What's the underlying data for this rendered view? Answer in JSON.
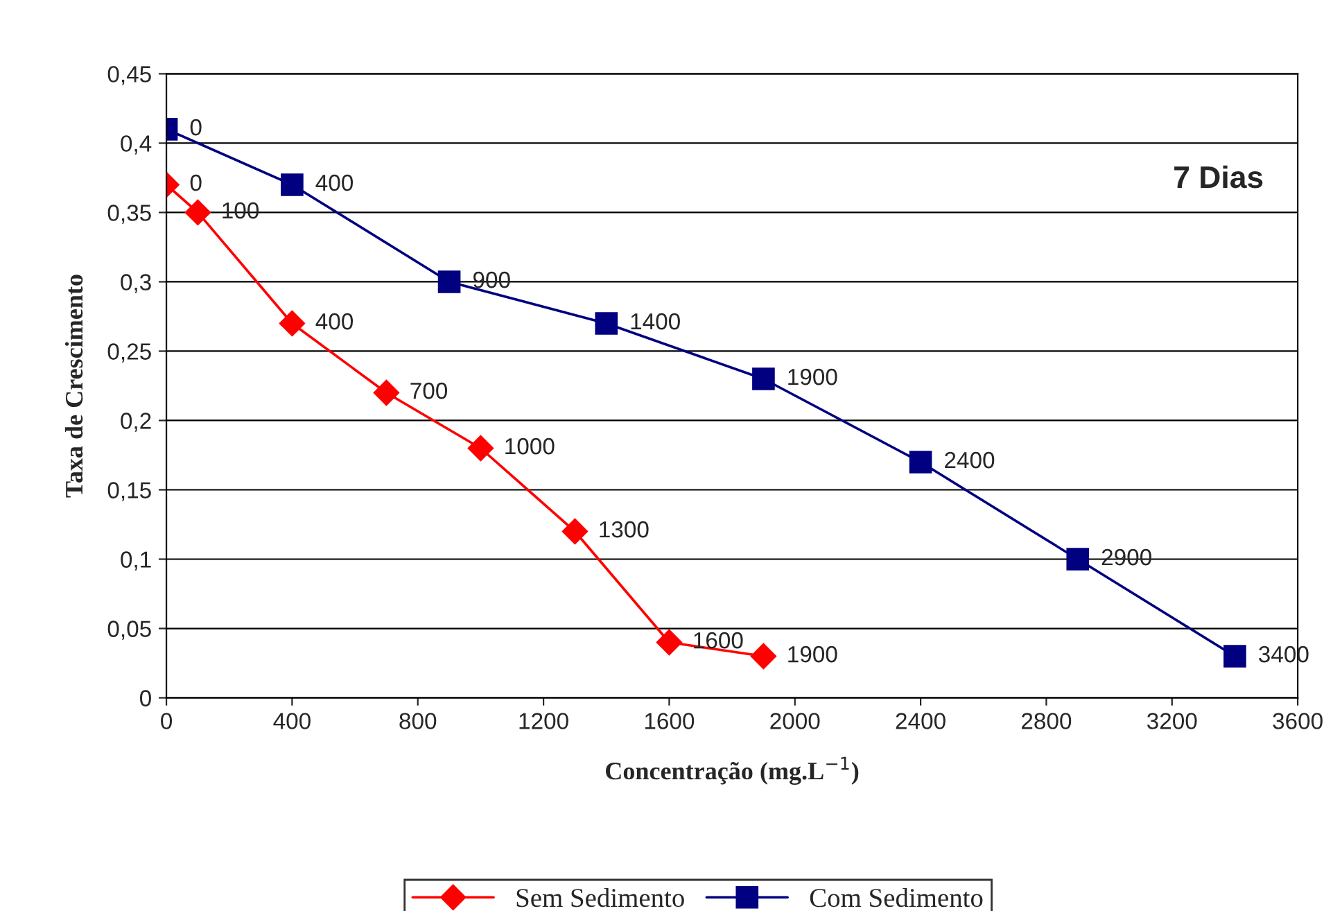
{
  "chart_data": {
    "type": "line",
    "xlabel": "Concentração (mg.L$^{−1}$)",
    "ylabel": "Taxa de Crescimento",
    "series": [
      {
        "name": "Sem Sedimento",
        "color": "#ff0000",
        "marker": "diamond",
        "x": [
          0,
          100,
          400,
          700,
          1000,
          1300,
          1600,
          1900
        ],
        "values": [
          0.37,
          0.35,
          0.27,
          0.22,
          0.18,
          0.12,
          0.04,
          0.03
        ]
      },
      {
        "name": "Com Sedimento",
        "color": "#000080",
        "marker": "square",
        "x": [
          0,
          400,
          900,
          1400,
          1900,
          2400,
          2900,
          3400
        ],
        "values": [
          0.41,
          0.37,
          0.3,
          0.27,
          0.23,
          0.17,
          0.1,
          0.03
        ]
      }
    ],
    "annotations": [
      "7 Dias",
      {
        "text": "0",
        "x": 0,
        "y": 0.37
      },
      {
        "text": "100",
        "x": 100,
        "y": 0.35
      },
      {
        "text": "400",
        "x": 400,
        "y": 0.27
      },
      {
        "text": "700",
        "x": 700,
        "y": 0.22
      },
      {
        "text": "1000",
        "x": 1000,
        "y": 0.18
      },
      {
        "text": "1300",
        "x": 1300,
        "y": 0.12
      },
      {
        "text": "1600",
        "x": 1600,
        "y": 0.04
      },
      {
        "text": "1900",
        "x": 1900,
        "y": 0.03
      },
      {
        "text": "0",
        "x": 0,
        "y": 0.41
      },
      {
        "text": "400",
        "x": 400,
        "y": 0.37
      },
      {
        "text": "900",
        "x": 900,
        "y": 0.3
      },
      {
        "text": "1400",
        "x": 1400,
        "y": 0.27
      },
      {
        "text": "1900",
        "x": 1900,
        "y": 0.23
      },
      {
        "text": "2400",
        "x": 2400,
        "y": 0.17
      },
      {
        "text": "2900",
        "x": 2900,
        "y": 0.1
      },
      {
        "text": "3400",
        "x": 3400,
        "y": 0.03
      }
    ],
    "xlim": [
      0,
      3600
    ],
    "xticks": [
      0,
      400,
      800,
      1200,
      1600,
      2000,
      2400,
      2800,
      3200,
      3600
    ],
    "ylim": [
      0,
      0.45
    ],
    "yticks": [
      {
        "value": 0,
        "label": "0"
      },
      {
        "value": 0.05,
        "label": "0,05"
      },
      {
        "value": 0.1,
        "label": "0,1"
      },
      {
        "value": 0.15,
        "label": "0,15"
      },
      {
        "value": 0.2,
        "label": "0,2"
      },
      {
        "value": 0.25,
        "label": "0,25"
      },
      {
        "value": 0.3,
        "label": "0,3"
      },
      {
        "value": 0.35,
        "label": "0,35"
      },
      {
        "value": 0.4,
        "label": "0,4"
      },
      {
        "value": 0.45,
        "label": "0,45"
      }
    ],
    "grid": "y",
    "legend": "bottom",
    "line_style": "solid"
  }
}
